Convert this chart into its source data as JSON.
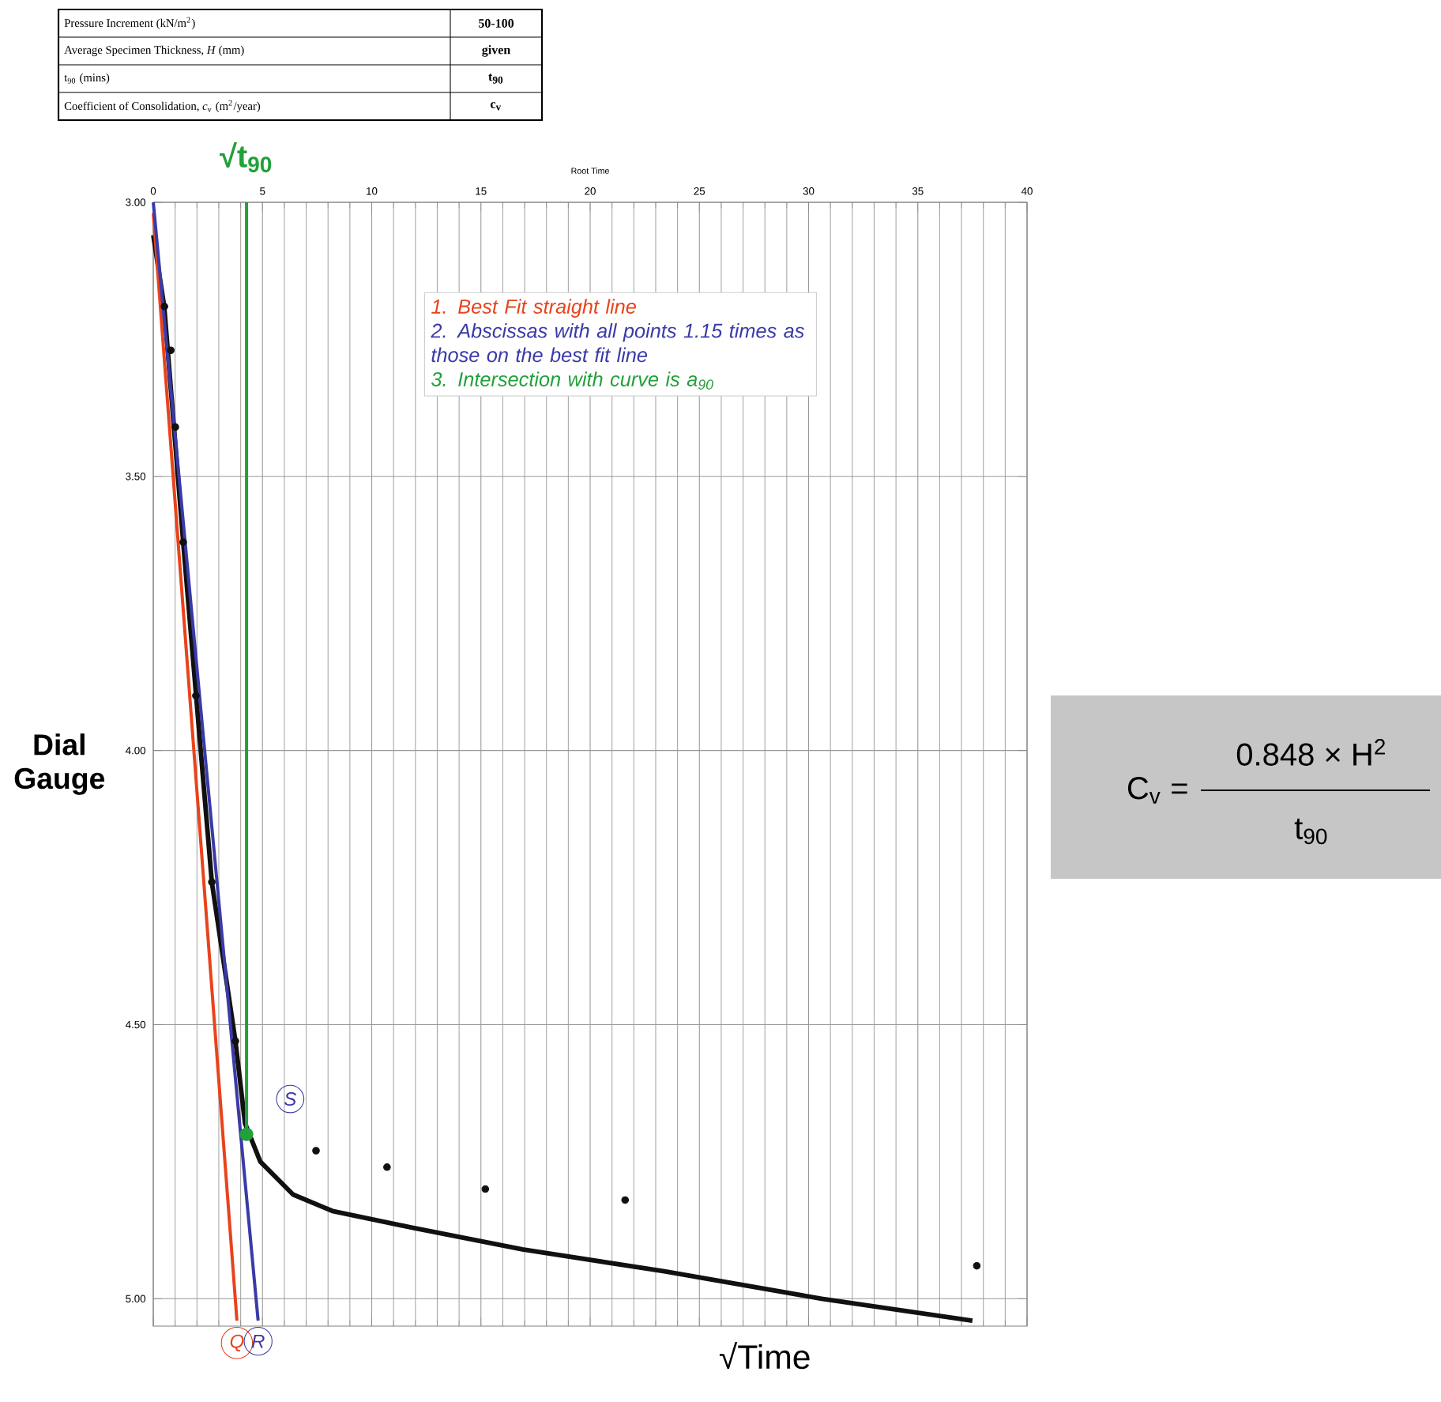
{
  "chart_data": {
    "type": "scatter",
    "xlabel": "√Time",
    "ylabel": "Dial Gauge",
    "xlim": [
      0,
      40
    ],
    "xticks": [
      0,
      5,
      10,
      15,
      20,
      25,
      30,
      35,
      40
    ],
    "ylim": [
      5.05,
      3.0
    ],
    "yticks": [
      {
        "value": 3,
        "label": "3.00"
      },
      {
        "value": 3.5,
        "label": "3.50"
      },
      {
        "value": 4,
        "label": "4.00"
      },
      {
        "value": 4.5,
        "label": "4.50"
      },
      {
        "value": 5,
        "label": "5.00"
      }
    ],
    "grid": true,
    "series": [
      {
        "type": "scatter",
        "color": "#111111",
        "x": [
          0.51,
          0.8,
          1.01,
          1.37,
          1.95,
          2.68,
          3.76,
          7.45,
          10.7,
          15.2,
          21.6,
          37.7
        ],
        "values": [
          3.19,
          3.27,
          3.41,
          3.62,
          3.9,
          4.24,
          4.53,
          4.73,
          4.76,
          4.8,
          4.82,
          4.94
        ]
      },
      {
        "type": "line",
        "color": "#111111",
        "x": [
          0,
          0.5,
          1.37,
          2.68,
          3.76,
          4.2,
          4.9,
          6.4,
          8.2,
          11.8,
          16.9,
          23.4,
          30.6,
          37.5
        ],
        "values": [
          3.06,
          3.19,
          3.62,
          4.24,
          4.53,
          4.68,
          4.75,
          4.81,
          4.84,
          4.87,
          4.91,
          4.95,
          5.0,
          5.04
        ]
      },
      {
        "type": "line",
        "color": "#e8431c",
        "x": [
          0,
          3.83
        ],
        "values": [
          3.02,
          5.04
        ]
      },
      {
        "type": "line",
        "color": "#3a3aa8",
        "x": [
          0,
          4.8
        ],
        "values": [
          3.0,
          5.04
        ]
      },
      {
        "type": "line",
        "color": "#22a03a",
        "x": [
          4.27,
          4.27
        ],
        "values": [
          4.7,
          3.0
        ]
      },
      {
        "type": "scatter",
        "color": "#22a03a",
        "x": [
          4.27
        ],
        "values": [
          4.7
        ]
      }
    ],
    "annotations": [
      "Root Time",
      "1. Best Fit straight line",
      "2. Abscissas with all points 1.15 times as those on the best fit line",
      "3. Intersection with curve is a$_{90}$",
      {
        "text": "Q",
        "x": 3.83,
        "y": 5.04
      },
      {
        "text": "R",
        "x": 4.8,
        "y": 5.04
      },
      {
        "text": "S",
        "x": 4.27,
        "y": 4.7
      },
      {
        "text": "√t$_{90}$",
        "x": 4.27,
        "y": 3.0
      },
      "Pressure Increment (kN/m$^{2}$)",
      "50-100",
      "Average Specimen Thickness, *H* (mm)",
      "given",
      "t$_{90}$ (mins)",
      "t$_{90}$",
      "Coefficient of Consolidation, *c*$_{v}$ (m$^{2}$/year)",
      "c$_{v}$",
      "C$_{v}$ =",
      "0.848 × H$^{2}$",
      "t$_{90}$"
    ]
  }
}
